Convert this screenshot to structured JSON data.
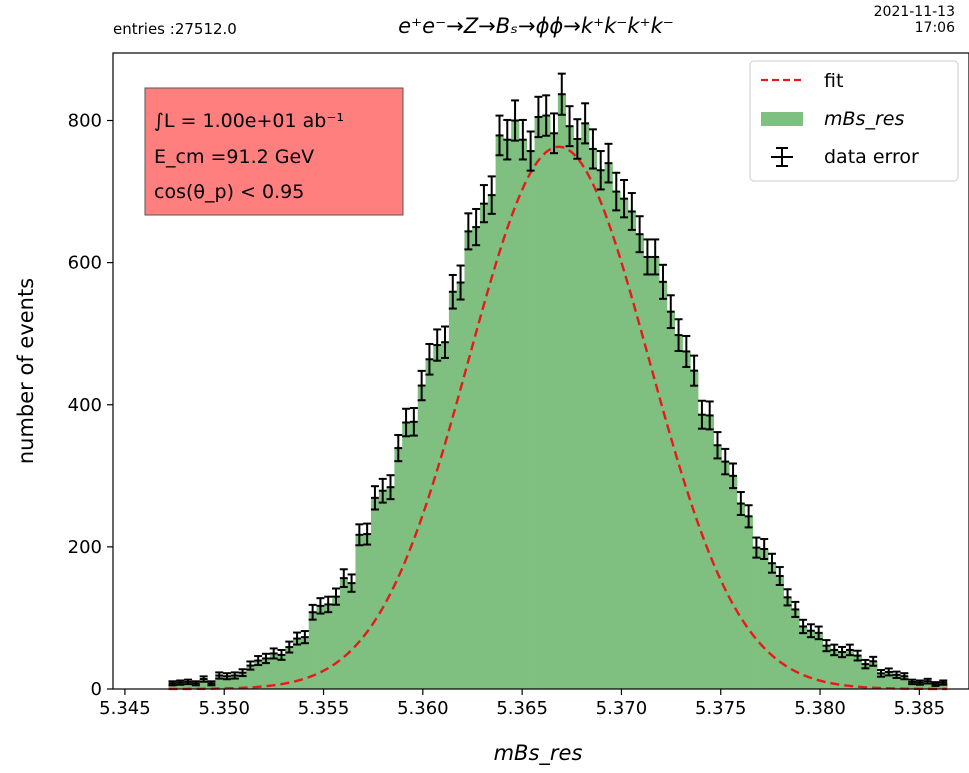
{
  "header": {
    "entries": "entries :27512.0",
    "process_title": "e⁺e⁻→Z→Bₛ→ϕϕ→k⁺k⁻k⁺k⁻",
    "date": "2021-11-13",
    "time": "17:06"
  },
  "info_box": {
    "line1": "∫L = 1.00e+01 ab⁻¹",
    "line2": "E_cm =91.2 GeV",
    "line3": "cos(θ_p) < 0.95",
    "fill": "#ff7f7f"
  },
  "legend": {
    "fit": "fit",
    "hist": "mBs_res",
    "errors": "data error"
  },
  "colors": {
    "hist": "#7fbf7f",
    "fit": "#e8191a",
    "errors": "#000000"
  },
  "chart_data": {
    "type": "bar",
    "xlabel": "mBs_res",
    "ylabel": "number of events",
    "xlim": [
      5.3444,
      5.3875
    ],
    "ylim": [
      0,
      895
    ],
    "xticks": [
      5.345,
      5.35,
      5.355,
      5.36,
      5.365,
      5.37,
      5.375,
      5.38,
      5.385
    ],
    "yticks": [
      0,
      200,
      400,
      600,
      800
    ],
    "bins": {
      "start": 5.3472,
      "end": 5.3864,
      "count": 100
    },
    "values": [
      8,
      9,
      10,
      8,
      14,
      8,
      19,
      18,
      19,
      23,
      33,
      40,
      43,
      50,
      48,
      59,
      71,
      73,
      108,
      117,
      119,
      130,
      156,
      149,
      217,
      218,
      269,
      279,
      284,
      339,
      375,
      376,
      427,
      464,
      484,
      488,
      559,
      572,
      644,
      650,
      683,
      695,
      779,
      773,
      800,
      773,
      757,
      805,
      807,
      782,
      837,
      792,
      774,
      796,
      760,
      730,
      740,
      700,
      690,
      672,
      640,
      608,
      608,
      573,
      531,
      498,
      475,
      448,
      386,
      385,
      343,
      320,
      300,
      261,
      243,
      199,
      197,
      177,
      159,
      129,
      112,
      88,
      82,
      79,
      61,
      55,
      52,
      55,
      47,
      35,
      39,
      22,
      24,
      20,
      18,
      10,
      9,
      11,
      7,
      9
    ],
    "fit": {
      "type": "gaussian",
      "amplitude": 763,
      "mean": 5.36685,
      "sigma": 0.00455
    },
    "legend_position": "upper right",
    "grid": false
  }
}
